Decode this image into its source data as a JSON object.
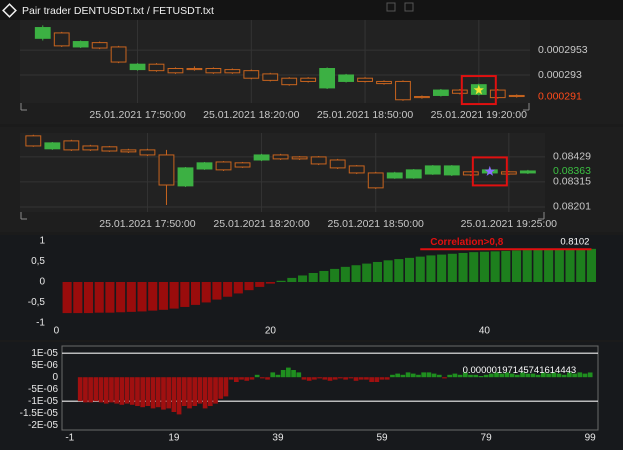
{
  "window": {
    "title": "Pair trader  DENTUSDT.txt / FETUSDT.txt"
  },
  "chart_data": [
    {
      "type": "candlestick",
      "up_color": "#3cb043",
      "down_color": "#c8641e",
      "grid": true,
      "open": [
        0.0002964,
        0.0002969,
        0.0002956,
        0.000296,
        0.0002956,
        0.0002935,
        0.000294,
        0.0002936,
        0.0002936,
        0.0002936,
        0.0002935,
        0.0002934,
        0.0002931,
        0.0002927,
        0.0002927,
        0.0002918,
        0.0002924,
        0.0002927,
        0.0002924,
        0.0002924,
        0.000291,
        0.0002911,
        0.0002916,
        0.0002912,
        0.0002916,
        0.0002911
      ],
      "close": [
        0.0002974,
        0.0002957,
        0.0002961,
        0.0002955,
        0.0002942,
        0.000294,
        0.0002934,
        0.0002932,
        0.0002935,
        0.0002932,
        0.0002932,
        0.0002927,
        0.0002925,
        0.0002921,
        0.0002924,
        0.0002936,
        0.000293,
        0.0002924,
        0.0002922,
        0.0002907,
        0.0002909,
        0.0002916,
        0.0002913,
        0.0002921,
        0.0002909,
        0.000291
      ],
      "high": [
        0.0002976,
        0.000297,
        0.0002962,
        0.0002961,
        0.0002957,
        0.0002941,
        0.0002941,
        0.0002937,
        0.0002938,
        0.0002937,
        0.0002936,
        0.0002935,
        0.0002932,
        0.0002928,
        0.0002928,
        0.0002937,
        0.0002931,
        0.0002928,
        0.0002925,
        0.0002925,
        0.0002911,
        0.0002917,
        0.0002917,
        0.0002922,
        0.0002917,
        0.0002912
      ],
      "low": [
        0.0002962,
        0.0002956,
        0.0002955,
        0.0002954,
        0.0002941,
        0.0002934,
        0.0002933,
        0.0002931,
        0.0002934,
        0.0002931,
        0.0002931,
        0.0002926,
        0.0002924,
        0.000292,
        0.0002923,
        0.0002917,
        0.0002923,
        0.0002923,
        0.0002921,
        0.0002906,
        0.0002908,
        0.000291,
        0.0002912,
        0.0002911,
        0.0002908,
        0.0002909
      ],
      "xlim": [
        -1.2,
        25.7
      ],
      "xticks": [
        {
          "value": 5,
          "label": "25.01.2021 17:50:00"
        },
        {
          "value": 11,
          "label": "25.01.2021 18:20:00"
        },
        {
          "value": 17,
          "label": "25.01.2021 18:50:00"
        },
        {
          "value": 23,
          "label": "25.01.2021 19:20:00"
        }
      ],
      "ylim": [
        0.0002904,
        0.0002981
      ],
      "yticks": [
        0.0002953,
        0.000293
      ],
      "last_price": 0.000291,
      "last_price_color": "#ff4a1a",
      "marker": {
        "index": 23,
        "value": 0.0002916,
        "color": "#f2e233"
      },
      "highlight_color": "#e01010"
    },
    {
      "type": "candlestick",
      "up_color": "#3cb043",
      "down_color": "#c8641e",
      "grid": true,
      "open": [
        0.08525,
        0.08466,
        0.08502,
        0.08479,
        0.08475,
        0.08461,
        0.08461,
        0.08438,
        0.08297,
        0.08374,
        0.08406,
        0.08402,
        0.08415,
        0.08438,
        0.08429,
        0.08429,
        0.08415,
        0.08388,
        0.08356,
        0.08333,
        0.08333,
        0.08351,
        0.08347,
        0.08361,
        0.08356,
        0.08361,
        0.08356
      ],
      "close": [
        0.08479,
        0.08493,
        0.08461,
        0.08461,
        0.08456,
        0.08452,
        0.08438,
        0.08301,
        0.08379,
        0.08402,
        0.0837,
        0.08383,
        0.08438,
        0.0842,
        0.0842,
        0.08397,
        0.08379,
        0.08356,
        0.08288,
        0.08356,
        0.0837,
        0.08388,
        0.08388,
        0.08347,
        0.0837,
        0.08351,
        0.08365
      ],
      "high": [
        0.0853,
        0.08497,
        0.08507,
        0.08484,
        0.08479,
        0.08466,
        0.08466,
        0.08461,
        0.08383,
        0.08406,
        0.0841,
        0.08406,
        0.08443,
        0.08443,
        0.08433,
        0.08433,
        0.0842,
        0.08392,
        0.08361,
        0.08361,
        0.08374,
        0.08392,
        0.08392,
        0.08365,
        0.08374,
        0.08365,
        0.0837
      ],
      "low": [
        0.08475,
        0.08461,
        0.08456,
        0.08456,
        0.08452,
        0.08447,
        0.08433,
        0.0821,
        0.08292,
        0.0837,
        0.08365,
        0.08379,
        0.0841,
        0.08415,
        0.08415,
        0.08392,
        0.08374,
        0.08351,
        0.08283,
        0.08329,
        0.08329,
        0.08347,
        0.08342,
        0.08342,
        0.08351,
        0.08347,
        0.08351
      ],
      "xlim": [
        -0.7,
        26.9
      ],
      "xticks": [
        {
          "value": 6,
          "label": "25.01.2021 17:50:00"
        },
        {
          "value": 12,
          "label": "25.01.2021 18:20:00"
        },
        {
          "value": 18,
          "label": "25.01.2021 18:50:00"
        },
        {
          "value": 25,
          "label": "25.01.2021 19:25:00"
        }
      ],
      "ylim": [
        0.08178,
        0.08538
      ],
      "yticks": [
        0.08429,
        0.08315,
        0.08201
      ],
      "last_price": 0.08363,
      "last_price_color": "#3cc043",
      "marker": {
        "index": 24,
        "value": 0.08363,
        "color": "#8a6cff"
      },
      "highlight_color": "#e01010"
    },
    {
      "type": "bar",
      "pos_color": "#1d7f1d",
      "neg_color": "#9a0c0c",
      "x": [
        1,
        2,
        3,
        4,
        5,
        6,
        7,
        8,
        9,
        10,
        11,
        12,
        13,
        14,
        15,
        16,
        17,
        18,
        19,
        20,
        21,
        22,
        23,
        24,
        25,
        26,
        27,
        28,
        29,
        30,
        31,
        32,
        33,
        34,
        35,
        36,
        37,
        38,
        39,
        40,
        41,
        42,
        43,
        44,
        45,
        46,
        47,
        48,
        49,
        50
      ],
      "values": [
        -0.76,
        -0.76,
        -0.76,
        -0.75,
        -0.75,
        -0.74,
        -0.73,
        -0.72,
        -0.7,
        -0.68,
        -0.65,
        -0.61,
        -0.56,
        -0.5,
        -0.43,
        -0.36,
        -0.28,
        -0.2,
        -0.12,
        -0.04,
        0.03,
        0.1,
        0.16,
        0.22,
        0.27,
        0.32,
        0.37,
        0.41,
        0.45,
        0.49,
        0.53,
        0.56,
        0.59,
        0.62,
        0.65,
        0.67,
        0.69,
        0.71,
        0.73,
        0.74,
        0.75,
        0.76,
        0.77,
        0.78,
        0.79,
        0.8,
        0.8,
        0.81,
        0.81,
        0.8102
      ],
      "xlim": [
        -0.6,
        50.8
      ],
      "xticks": [
        0,
        20,
        40
      ],
      "ylim": [
        -1.1,
        1.1
      ],
      "yticks": [
        1,
        {
          "value": 0.5,
          "label": "0,5"
        },
        0,
        {
          "value": -0.5,
          "label": "-0,5"
        },
        -1
      ],
      "annotation": {
        "text": "Correlation>0,8",
        "value": 0.8,
        "x": [
          34,
          50
        ],
        "color": "#e01010"
      }
    },
    {
      "type": "bar",
      "pos_color": "#1f8f1f",
      "neg_color": "#a01010",
      "x": [
        1,
        2,
        3,
        4,
        5,
        6,
        7,
        8,
        9,
        10,
        11,
        12,
        13,
        14,
        15,
        16,
        17,
        18,
        19,
        20,
        21,
        22,
        23,
        24,
        25,
        26,
        27,
        28,
        29,
        30,
        31,
        32,
        33,
        34,
        35,
        36,
        37,
        38,
        39,
        40,
        41,
        42,
        43,
        44,
        45,
        46,
        47,
        48,
        49,
        50,
        51,
        52,
        53,
        54,
        55,
        56,
        57,
        58,
        59,
        60,
        61,
        62,
        63,
        64,
        65,
        66,
        67,
        68,
        69,
        70,
        71,
        72,
        73,
        74,
        75,
        76,
        77,
        78,
        79,
        80,
        81,
        82,
        83,
        84,
        85,
        86,
        87,
        88,
        89,
        90,
        91,
        92,
        93,
        94,
        95,
        96,
        97,
        98,
        99
      ],
      "values": [
        -1e-05,
        -1.05e-05,
        -1.05e-05,
        -1e-05,
        -1.05e-05,
        -1.1e-05,
        -1.05e-05,
        -1.1e-05,
        -1.15e-05,
        -1.1e-05,
        -1.15e-05,
        -1.2e-05,
        -1.25e-05,
        -1.2e-05,
        -1.3e-05,
        -1.25e-05,
        -1.35e-05,
        -1.3e-05,
        -1.45e-05,
        -1.55e-05,
        -1.2e-05,
        -1.3e-05,
        -1.2e-05,
        -1.1e-05,
        -1.3e-05,
        -1.2e-05,
        -1.1e-05,
        -9e-06,
        -8e-06,
        -1e-06,
        -2e-06,
        -1e-06,
        -1.5e-06,
        -1e-06,
        1e-06,
        -5e-07,
        -1e-06,
        2e-06,
        1e-06,
        3e-06,
        4e-06,
        3e-06,
        2e-06,
        -1e-06,
        -1.5e-06,
        -1e-06,
        -5e-07,
        -1e-06,
        -1.5e-06,
        -1e-06,
        -5e-07,
        -1e-06,
        -5e-07,
        -1.5e-06,
        -1e-06,
        -1e-06,
        -2e-06,
        -2e-06,
        -1e-06,
        -1e-06,
        1e-06,
        1.5e-06,
        1e-06,
        2e-06,
        1.5e-06,
        1e-06,
        2e-06,
        2e-06,
        1.5e-06,
        1e-06,
        -5e-07,
        1e-06,
        1.5e-06,
        1e-06,
        2e-06,
        1e-06,
        1e-06,
        5e-07,
        1e-06,
        1.5e-06,
        2e-06,
        1.5e-06,
        2e-06,
        1.5e-06,
        1e-06,
        2e-06,
        1.5e-06,
        1.5e-06,
        1e-06,
        2e-06,
        1.5e-06,
        2e-06,
        1.5e-06,
        1e-06,
        2e-06,
        1.5e-06,
        2e-06,
        1.5e-06,
        1.97145741614443e-06
      ],
      "xlim": [
        -2.5,
        100.5
      ],
      "xticks": [
        -1,
        19,
        39,
        59,
        79,
        99
      ],
      "ylim": [
        -2.2e-05,
        1.3e-05
      ],
      "yticks": [
        {
          "value": 1e-05,
          "label": "1E-05"
        },
        {
          "value": 5e-06,
          "label": "5E-06"
        },
        0,
        {
          "value": -5e-06,
          "label": "-5E-06"
        },
        {
          "value": -1e-05,
          "label": "-1E-05"
        },
        {
          "value": -1.5e-05,
          "label": "-1.5E-05"
        },
        {
          "value": -2e-05,
          "label": "-2E-05"
        }
      ],
      "hlines": [
        1e-05,
        -1e-05
      ]
    }
  ]
}
